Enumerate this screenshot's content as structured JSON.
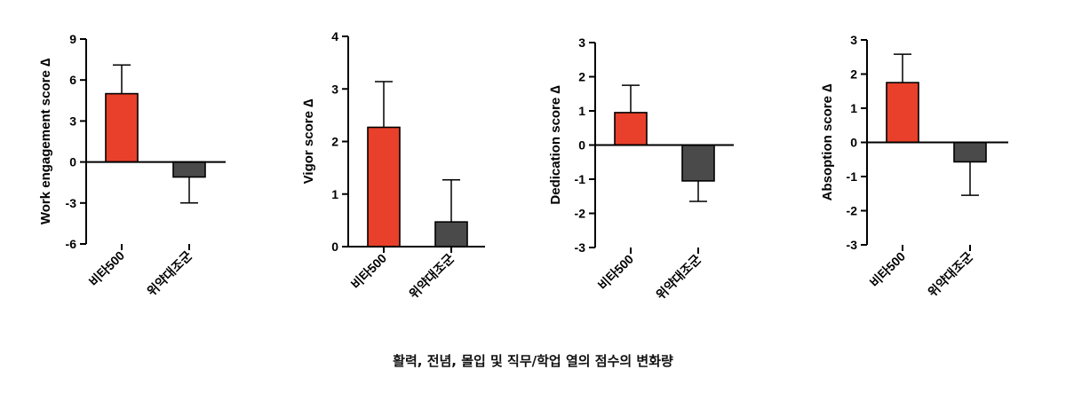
{
  "caption": "활력, 전념, 몰입 및 직무/학업 열의 점수의 변화량",
  "colors": {
    "bar_treatment": "#e8402a",
    "bar_placebo": "#4a4a4a",
    "axis": "#000000"
  },
  "chart_data": [
    {
      "type": "bar",
      "ylabel": "Work engagement score ∆",
      "categories": [
        "비타500",
        "위약대조군"
      ],
      "values": [
        5.0,
        -1.1
      ],
      "errors": [
        2.1,
        1.9
      ],
      "ylim": [
        -6,
        9
      ],
      "yticks": [
        -6,
        -3,
        0,
        3,
        6,
        9
      ]
    },
    {
      "type": "bar",
      "ylabel": "Vigor score ∆",
      "categories": [
        "비타500",
        "위약대조군"
      ],
      "values": [
        2.27,
        0.47
      ],
      "errors": [
        0.87,
        0.8
      ],
      "ylim": [
        0,
        4
      ],
      "yticks": [
        0,
        1,
        2,
        3,
        4
      ]
    },
    {
      "type": "bar",
      "ylabel": "Dedication score ∆",
      "categories": [
        "비타500",
        "위약대조군"
      ],
      "values": [
        0.95,
        -1.05
      ],
      "errors": [
        0.8,
        0.6
      ],
      "ylim": [
        -3,
        3
      ],
      "yticks": [
        -3,
        -2,
        -1,
        0,
        1,
        2,
        3
      ]
    },
    {
      "type": "bar",
      "ylabel": "Absoption score ∆",
      "categories": [
        "비타500",
        "위약대조군"
      ],
      "values": [
        1.75,
        -0.57
      ],
      "errors": [
        0.83,
        0.98
      ],
      "ylim": [
        -3,
        3
      ],
      "yticks": [
        -3,
        -2,
        -1,
        0,
        1,
        2,
        3
      ]
    }
  ]
}
